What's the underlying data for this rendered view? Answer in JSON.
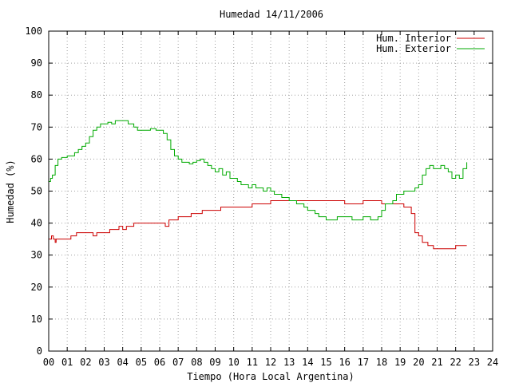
{
  "chart_data": {
    "type": "line",
    "title": "Humedad 14/11/2006",
    "xlabel": "Tiempo (Hora Local Argentina)",
    "ylabel": "Humedad (%)",
    "xlim": [
      0,
      24
    ],
    "ylim": [
      0,
      100
    ],
    "x_ticks": [
      "00",
      "01",
      "02",
      "03",
      "04",
      "05",
      "06",
      "07",
      "08",
      "09",
      "10",
      "11",
      "12",
      "13",
      "14",
      "15",
      "16",
      "17",
      "18",
      "19",
      "20",
      "21",
      "22",
      "23",
      "24"
    ],
    "y_ticks": [
      "0",
      "10",
      "20",
      "30",
      "40",
      "50",
      "60",
      "70",
      "80",
      "90",
      "100"
    ],
    "grid": true,
    "legend_position": "top-right",
    "series": [
      {
        "name": "Hum. Interior",
        "color": "#cc0000",
        "x": [
          0,
          0.15,
          0.25,
          0.35,
          0.4,
          0.5,
          0.9,
          1.2,
          1.5,
          1.8,
          2.0,
          2.4,
          2.6,
          3.0,
          3.3,
          3.6,
          3.8,
          4.0,
          4.2,
          4.6,
          5.0,
          5.5,
          6.0,
          6.2,
          6.3,
          6.5,
          6.8,
          7.0,
          7.3,
          7.7,
          8.0,
          8.3,
          8.7,
          9.0,
          9.3,
          9.6,
          10.0,
          10.5,
          11.0,
          11.5,
          12.0,
          12.5,
          13.0,
          13.5,
          14.0,
          14.5,
          15.0,
          15.5,
          16.0,
          16.5,
          17.0,
          17.5,
          18.0,
          18.5,
          19.0,
          19.2,
          19.4,
          19.6,
          19.8,
          20.0,
          20.2,
          20.5,
          20.8,
          21.0,
          21.3,
          21.6,
          22.0,
          22.3,
          22.6
        ],
        "values": [
          35,
          36,
          35,
          34,
          35,
          35,
          35,
          36,
          37,
          37,
          37,
          36,
          37,
          37,
          38,
          38,
          39,
          38,
          39,
          40,
          40,
          40,
          40,
          40,
          39,
          41,
          41,
          42,
          42,
          43,
          43,
          44,
          44,
          44,
          45,
          45,
          45,
          45,
          46,
          46,
          47,
          47,
          47,
          47,
          47,
          47,
          47,
          47,
          46,
          46,
          47,
          47,
          46,
          46,
          46,
          45,
          45,
          43,
          37,
          36,
          34,
          33,
          32,
          32,
          32,
          32,
          33,
          33,
          33
        ]
      },
      {
        "name": "Hum. Exterior",
        "color": "#00aa00",
        "x": [
          0,
          0.1,
          0.2,
          0.35,
          0.5,
          0.7,
          1.0,
          1.2,
          1.4,
          1.6,
          1.8,
          2.0,
          2.2,
          2.4,
          2.6,
          2.8,
          3.0,
          3.2,
          3.4,
          3.6,
          3.8,
          4.0,
          4.3,
          4.6,
          4.8,
          5.0,
          5.2,
          5.5,
          5.8,
          6.0,
          6.2,
          6.4,
          6.6,
          6.8,
          7.0,
          7.2,
          7.4,
          7.6,
          7.8,
          8.0,
          8.2,
          8.4,
          8.6,
          8.8,
          9.0,
          9.2,
          9.4,
          9.6,
          9.8,
          10.0,
          10.2,
          10.4,
          10.6,
          10.8,
          11.0,
          11.2,
          11.4,
          11.6,
          11.8,
          12.0,
          12.2,
          12.4,
          12.6,
          12.8,
          13.0,
          13.2,
          13.4,
          13.6,
          13.8,
          14.0,
          14.2,
          14.4,
          14.6,
          14.8,
          15.0,
          15.2,
          15.4,
          15.6,
          15.8,
          16.0,
          16.2,
          16.4,
          16.6,
          16.8,
          17.0,
          17.2,
          17.4,
          17.6,
          17.8,
          18.0,
          18.2,
          18.4,
          18.6,
          18.8,
          19.0,
          19.2,
          19.4,
          19.6,
          19.8,
          20.0,
          20.2,
          20.4,
          20.6,
          20.8,
          21.0,
          21.2,
          21.4,
          21.6,
          21.8,
          22.0,
          22.2,
          22.4,
          22.6
        ],
        "values": [
          53,
          54,
          55,
          58,
          60,
          60.5,
          61,
          61,
          62,
          63,
          64,
          65,
          67,
          69,
          70,
          71,
          71,
          71.5,
          71,
          72,
          72,
          72,
          71,
          70,
          69,
          69,
          69,
          69.5,
          69,
          69,
          68,
          66,
          63,
          61,
          60,
          59,
          59,
          58.5,
          59,
          59.5,
          60,
          59,
          58,
          57,
          56,
          57,
          55,
          56,
          54,
          54,
          53,
          52,
          52,
          51,
          52,
          51,
          51,
          50,
          51,
          50,
          49,
          49,
          48,
          48,
          47,
          47,
          46,
          46,
          45,
          44,
          44,
          43,
          42,
          42,
          41,
          41,
          41,
          42,
          42,
          42,
          42,
          41,
          41,
          41,
          42,
          42,
          41,
          41,
          42,
          44,
          46,
          46,
          47,
          49,
          49,
          50,
          50,
          50,
          51,
          52,
          55,
          57,
          58,
          57,
          57,
          58,
          57,
          56,
          54,
          55,
          54,
          57,
          59
        ]
      }
    ]
  }
}
